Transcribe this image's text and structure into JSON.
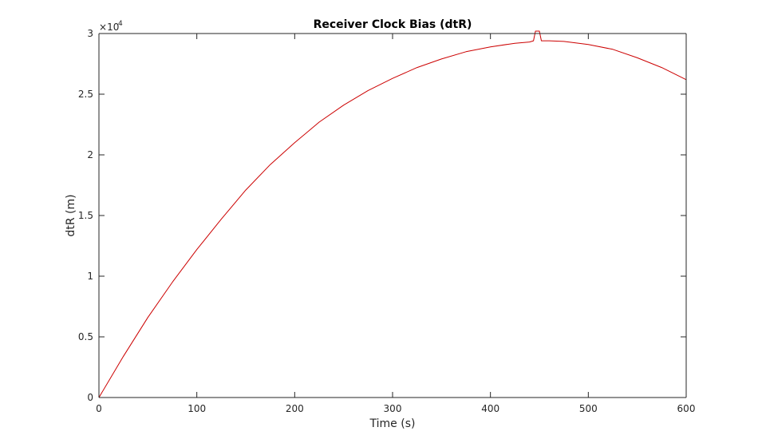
{
  "chart_data": {
    "type": "line",
    "title": "Receiver Clock Bias (dtR)",
    "xlabel": "Time (s)",
    "ylabel": "dtR (m)",
    "xlim": [
      0,
      600
    ],
    "ylim": [
      0,
      30000
    ],
    "xticks": [
      0,
      100,
      200,
      300,
      400,
      500,
      600
    ],
    "xtick_labels": [
      "0",
      "100",
      "200",
      "300",
      "400",
      "500",
      "600"
    ],
    "yticks": [
      0,
      5000,
      10000,
      15000,
      20000,
      25000,
      30000
    ],
    "ytick_labels": [
      "0",
      "0.5",
      "1",
      "1.5",
      "2",
      "2.5",
      "3"
    ],
    "y_exponent": {
      "base": "10",
      "power": "4"
    },
    "grid": false,
    "legend": "none",
    "series": [
      {
        "color": "#cc0000",
        "x": [
          0,
          25,
          50,
          75,
          100,
          125,
          150,
          175,
          200,
          225,
          250,
          275,
          300,
          325,
          350,
          375,
          400,
          425,
          440,
          444,
          446,
          450,
          452,
          460,
          475,
          500,
          525,
          550,
          575,
          600
        ],
        "y": [
          0,
          3400,
          6600,
          9500,
          12200,
          14700,
          17100,
          19200,
          21000,
          22700,
          24100,
          25300,
          26300,
          27200,
          27900,
          28500,
          28900,
          29200,
          29300,
          29400,
          30200,
          30200,
          29400,
          29400,
          29350,
          29100,
          28700,
          28000,
          27200,
          26200
        ]
      }
    ]
  }
}
